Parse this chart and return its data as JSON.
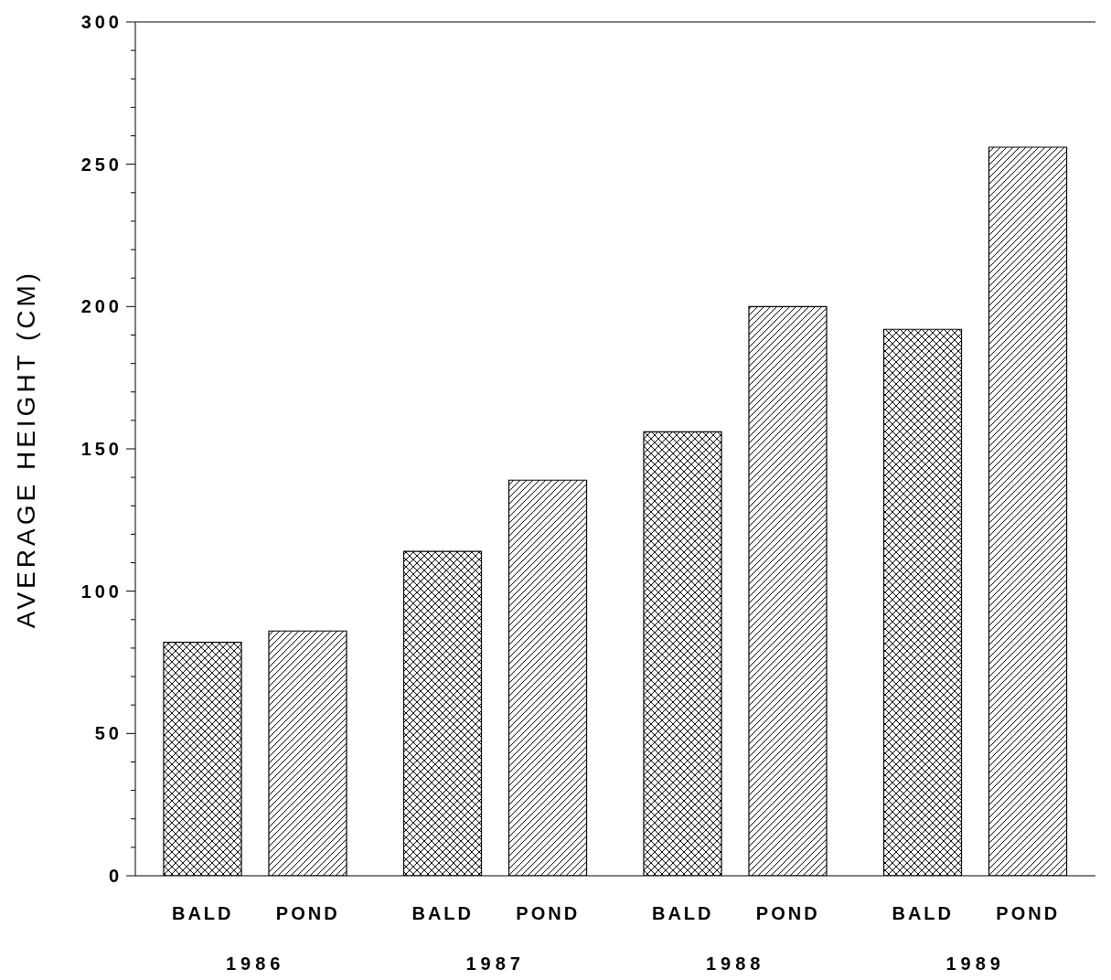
{
  "chart_data": {
    "type": "bar",
    "ylabel": "AVERAGE HEIGHT  (CM)",
    "categories": [
      "1986",
      "1987",
      "1988",
      "1989"
    ],
    "series": [
      {
        "name": "BALD",
        "color": "#000000",
        "values": [
          82,
          114,
          156,
          192
        ]
      },
      {
        "name": "POND",
        "color": "#000000",
        "values": [
          86,
          139,
          200,
          256
        ]
      }
    ],
    "ylim": [
      0,
      300
    ],
    "yticks": [
      0,
      {
        "value": 10,
        "label": null
      },
      {
        "value": 20,
        "label": null
      },
      {
        "value": 30,
        "label": null
      },
      {
        "value": 40,
        "label": null
      },
      50,
      {
        "value": 60,
        "label": null
      },
      {
        "value": 70,
        "label": null
      },
      {
        "value": 80,
        "label": null
      },
      {
        "value": 90,
        "label": null
      },
      100,
      {
        "value": 110,
        "label": null
      },
      {
        "value": 120,
        "label": null
      },
      {
        "value": 130,
        "label": null
      },
      {
        "value": 140,
        "label": null
      },
      150,
      {
        "value": 160,
        "label": null
      },
      {
        "value": 170,
        "label": null
      },
      {
        "value": 180,
        "label": null
      },
      {
        "value": 190,
        "label": null
      },
      200,
      {
        "value": 210,
        "label": null
      },
      {
        "value": 220,
        "label": null
      },
      {
        "value": 230,
        "label": null
      },
      {
        "value": 240,
        "label": null
      },
      250,
      {
        "value": 260,
        "label": null
      },
      {
        "value": 270,
        "label": null
      },
      {
        "value": 280,
        "label": null
      },
      {
        "value": 290,
        "label": null
      },
      300
    ],
    "grid": false,
    "legend": false
  }
}
